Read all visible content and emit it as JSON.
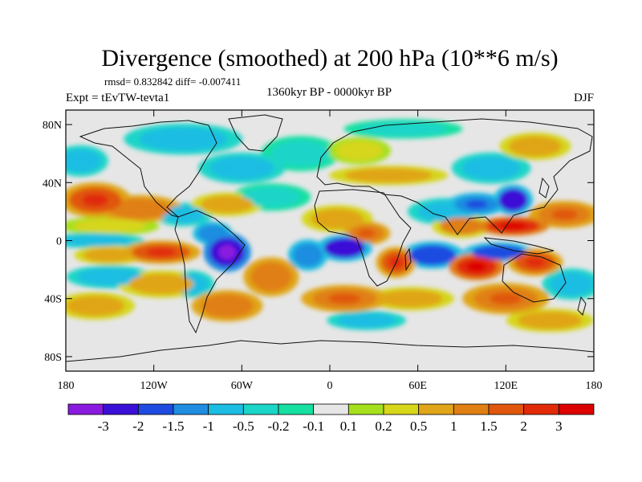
{
  "chart_data": {
    "type": "heatmap",
    "title": "Divergence (smoothed) at 200 hPa (10**6 m/s)",
    "stats": "rmsd= 0.832842 diff= -0.007411",
    "experiment": "Expt = tEvTW-tevta1",
    "period": "1360kyr BP - 0000kyr BP",
    "season": "DJF",
    "x_ticks": [
      {
        "value": -180,
        "label": "180"
      },
      {
        "value": -120,
        "label": "120W"
      },
      {
        "value": -60,
        "label": "60W"
      },
      {
        "value": 0,
        "label": "0"
      },
      {
        "value": 60,
        "label": "60E"
      },
      {
        "value": 120,
        "label": "120E"
      },
      {
        "value": 180,
        "label": "180"
      }
    ],
    "y_ticks": [
      {
        "value": 80,
        "label": "80N"
      },
      {
        "value": 40,
        "label": "40N"
      },
      {
        "value": 0,
        "label": "0"
      },
      {
        "value": -40,
        "label": "40S"
      },
      {
        "value": -80,
        "label": "80S"
      }
    ],
    "xlim": [
      -180,
      180
    ],
    "ylim": [
      -90,
      90
    ],
    "colorbar": {
      "colors": [
        "#8b1adf",
        "#3a0fd6",
        "#1f4be0",
        "#1f8de0",
        "#1cbde2",
        "#1ad5c8",
        "#15e0a2",
        "#e6e6e6",
        "#a6e01d",
        "#d6d61a",
        "#e0a518",
        "#e07f12",
        "#e0560c",
        "#e02a08",
        "#dc0000"
      ],
      "labels": [
        "-3",
        "-2",
        "-1.5",
        "-1",
        "-0.5",
        "-0.2",
        "-0.1",
        "0.1",
        "0.2",
        "0.5",
        "1",
        "1.5",
        "2",
        "3"
      ]
    },
    "features": [
      {
        "lon": -160,
        "lat": 28,
        "v": 1.6,
        "rx": 18,
        "ry": 9
      },
      {
        "lon": -130,
        "lat": 22,
        "v": 1.2,
        "rx": 22,
        "ry": 7
      },
      {
        "lon": -170,
        "lat": 55,
        "v": -0.5,
        "rx": 14,
        "ry": 8
      },
      {
        "lon": -150,
        "lat": 10,
        "v": 0.4,
        "rx": 25,
        "ry": 5
      },
      {
        "lon": -160,
        "lat": 0,
        "v": -0.8,
        "rx": 25,
        "ry": 4
      },
      {
        "lon": -115,
        "lat": -8,
        "v": 1.8,
        "rx": 20,
        "ry": 6
      },
      {
        "lon": -150,
        "lat": -10,
        "v": 0.9,
        "rx": 18,
        "ry": 5
      },
      {
        "lon": -150,
        "lat": -25,
        "v": -0.8,
        "rx": 22,
        "ry": 6
      },
      {
        "lon": -115,
        "lat": -30,
        "v": 1.0,
        "rx": 22,
        "ry": 7
      },
      {
        "lon": -160,
        "lat": -45,
        "v": 0.8,
        "rx": 20,
        "ry": 7
      },
      {
        "lon": -70,
        "lat": -8,
        "v": -2.8,
        "rx": 12,
        "ry": 10
      },
      {
        "lon": -80,
        "lat": 5,
        "v": -1.2,
        "rx": 10,
        "ry": 6
      },
      {
        "lon": -40,
        "lat": -25,
        "v": 1.3,
        "rx": 14,
        "ry": 10
      },
      {
        "lon": -95,
        "lat": -30,
        "v": -0.6,
        "rx": 12,
        "ry": 7
      },
      {
        "lon": -70,
        "lat": -45,
        "v": 1.2,
        "rx": 18,
        "ry": 8
      },
      {
        "lon": -100,
        "lat": 18,
        "v": -0.7,
        "rx": 15,
        "ry": 6
      },
      {
        "lon": -70,
        "lat": 25,
        "v": 0.8,
        "rx": 18,
        "ry": 6
      },
      {
        "lon": -40,
        "lat": 30,
        "v": -0.4,
        "rx": 20,
        "ry": 7
      },
      {
        "lon": -60,
        "lat": 50,
        "v": -0.6,
        "rx": 22,
        "ry": 8
      },
      {
        "lon": -20,
        "lat": 60,
        "v": -0.4,
        "rx": 20,
        "ry": 9
      },
      {
        "lon": 20,
        "lat": 62,
        "v": 0.4,
        "rx": 16,
        "ry": 7
      },
      {
        "lon": -100,
        "lat": 70,
        "v": -0.5,
        "rx": 30,
        "ry": 8
      },
      {
        "lon": 50,
        "lat": 77,
        "v": -0.4,
        "rx": 30,
        "ry": 5
      },
      {
        "lon": 40,
        "lat": 45,
        "v": 0.8,
        "rx": 30,
        "ry": 5
      },
      {
        "lon": 5,
        "lat": 15,
        "v": 0.6,
        "rx": 18,
        "ry": 7
      },
      {
        "lon": 10,
        "lat": -5,
        "v": -2.0,
        "rx": 14,
        "ry": 7
      },
      {
        "lon": -15,
        "lat": -10,
        "v": -1.2,
        "rx": 10,
        "ry": 8
      },
      {
        "lon": 45,
        "lat": -15,
        "v": 2.0,
        "rx": 10,
        "ry": 8
      },
      {
        "lon": 25,
        "lat": 5,
        "v": 1.4,
        "rx": 12,
        "ry": 6
      },
      {
        "lon": 70,
        "lat": -10,
        "v": -1.5,
        "rx": 16,
        "ry": 7
      },
      {
        "lon": 10,
        "lat": -40,
        "v": 1.5,
        "rx": 22,
        "ry": 7
      },
      {
        "lon": 55,
        "lat": -40,
        "v": 1.0,
        "rx": 22,
        "ry": 6
      },
      {
        "lon": 25,
        "lat": -55,
        "v": -0.5,
        "rx": 20,
        "ry": 5
      },
      {
        "lon": 80,
        "lat": 20,
        "v": -0.6,
        "rx": 20,
        "ry": 7
      },
      {
        "lon": 100,
        "lat": 25,
        "v": -1.4,
        "rx": 15,
        "ry": 6
      },
      {
        "lon": 125,
        "lat": 28,
        "v": -2.0,
        "rx": 10,
        "ry": 8
      },
      {
        "lon": 125,
        "lat": 10,
        "v": 2.4,
        "rx": 18,
        "ry": 5
      },
      {
        "lon": 90,
        "lat": 10,
        "v": 1.1,
        "rx": 15,
        "ry": 6
      },
      {
        "lon": 115,
        "lat": -8,
        "v": -1.5,
        "rx": 18,
        "ry": 5
      },
      {
        "lon": 100,
        "lat": -18,
        "v": 2.5,
        "rx": 14,
        "ry": 7
      },
      {
        "lon": 140,
        "lat": -15,
        "v": 1.6,
        "rx": 14,
        "ry": 7
      },
      {
        "lon": 160,
        "lat": 18,
        "v": 1.4,
        "rx": 18,
        "ry": 7
      },
      {
        "lon": 120,
        "lat": -40,
        "v": 1.5,
        "rx": 22,
        "ry": 8
      },
      {
        "lon": 165,
        "lat": -30,
        "v": -0.6,
        "rx": 15,
        "ry": 8
      },
      {
        "lon": 150,
        "lat": -55,
        "v": 1.0,
        "rx": 22,
        "ry": 6
      },
      {
        "lon": 110,
        "lat": 50,
        "v": -0.5,
        "rx": 20,
        "ry": 8
      },
      {
        "lon": 140,
        "lat": 65,
        "v": 0.6,
        "rx": 18,
        "ry": 7
      }
    ]
  }
}
